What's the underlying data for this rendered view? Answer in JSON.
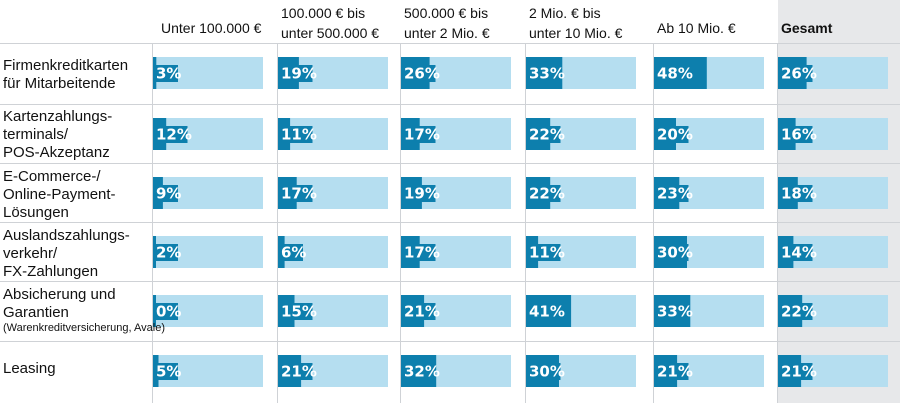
{
  "chart_data": {
    "type": "bar",
    "title": "",
    "xlabel": "",
    "ylabel": "",
    "ylim": [
      0,
      100
    ],
    "value_suffix": "%",
    "columns": [
      "Unter 100.000 €",
      "100.000 € bis\nunter 500.000 €",
      "500.000 € bis\nunter 2 Mio. €",
      "2 Mio. € bis\nunter 10 Mio. €",
      "Ab 10 Mio. €",
      "Gesamt"
    ],
    "categories": [
      {
        "label": "Firmenkreditkarten\nfür Mitarbeitende",
        "note": ""
      },
      {
        "label": "Kartenzahlungs-\nterminals/\nPOS-Akzeptanz",
        "note": ""
      },
      {
        "label": "E-Commerce-/\nOnline-Payment-\nLösungen",
        "note": ""
      },
      {
        "label": "Auslandszahlungs-\nverkehr/\nFX-Zahlungen",
        "note": ""
      },
      {
        "label": "Absicherung und\nGarantien",
        "note": "(Warenkreditversicherung, Avale)"
      },
      {
        "label": "Leasing",
        "note": ""
      }
    ],
    "values": [
      [
        3,
        19,
        26,
        33,
        48,
        26
      ],
      [
        12,
        11,
        17,
        22,
        20,
        16
      ],
      [
        9,
        17,
        19,
        22,
        23,
        18
      ],
      [
        2,
        6,
        17,
        11,
        30,
        14
      ],
      [
        0,
        15,
        21,
        41,
        33,
        22
      ],
      [
        5,
        21,
        32,
        30,
        21,
        21
      ]
    ],
    "colors": {
      "fill": "#0d7fad",
      "track": "#b5def0",
      "highlight_column": "#e7e8ea",
      "separator": "#cfd2d6"
    }
  }
}
